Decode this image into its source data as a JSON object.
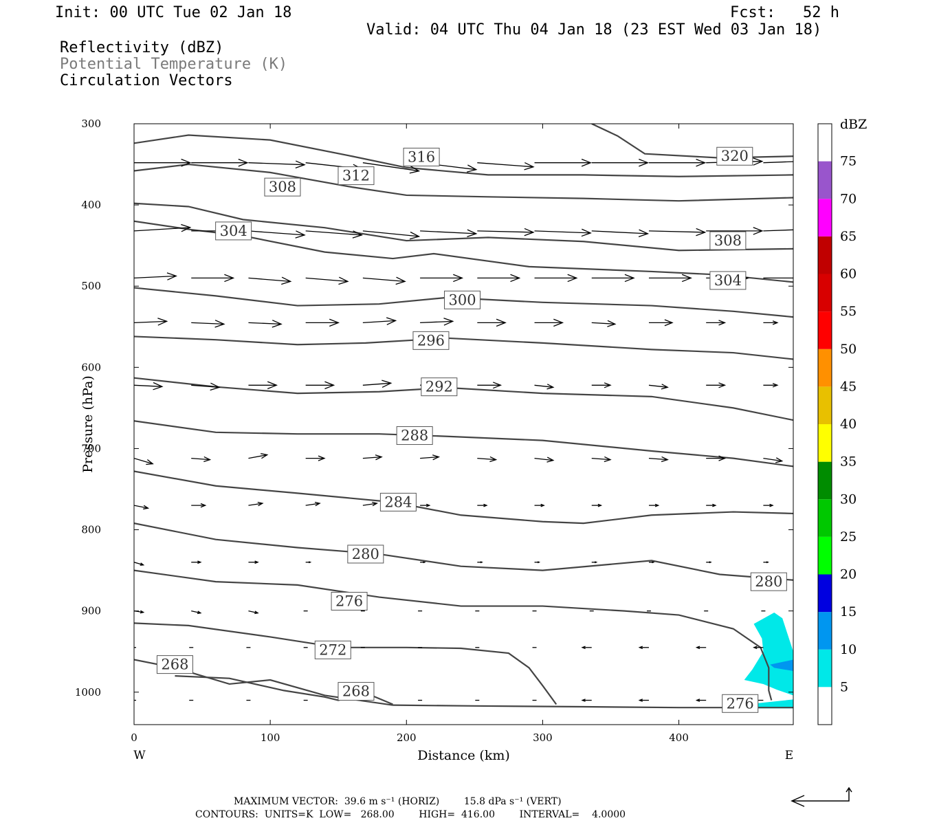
{
  "header": {
    "init": "Init: 00 UTC Tue 02 Jan 18",
    "fcst": "Fcst:   52 h",
    "valid": "Valid: 04 UTC Thu 04 Jan 18 (23 EST Wed 03 Jan 18)",
    "fields": [
      "Reflectivity (dBZ)",
      "Potential Temperature (K)",
      "Circulation Vectors"
    ]
  },
  "footer": {
    "max_vector": "MAXIMUM VECTOR:  39.6 m s⁻¹ (HORIZ)        15.8 dPa s⁻¹ (VERT)",
    "contours": "CONTOURS:  UNITS=K  LOW=   268.00        HIGH=  416.00        INTERVAL=    4.0000"
  },
  "chart_data": {
    "type": "cross-section",
    "xlabel": "Distance (km)",
    "ylabel": "Pressure (hPa)",
    "xlim": [
      0,
      484
    ],
    "ylim": [
      300,
      1040
    ],
    "x_ticks": [
      0,
      100,
      200,
      300,
      400
    ],
    "y_ticks": [
      300,
      400,
      500,
      600,
      700,
      800,
      900,
      1000
    ],
    "x_end_labels": {
      "left": "W",
      "right": "E"
    },
    "colorbar": {
      "label": "dBZ",
      "ticks": [
        5,
        10,
        15,
        20,
        25,
        30,
        35,
        40,
        45,
        50,
        55,
        60,
        65,
        70,
        75
      ],
      "colors": [
        "#00e8e8",
        "#0096f0",
        "#0000e0",
        "#00ff00",
        "#00c800",
        "#008c00",
        "#ffff00",
        "#e8c000",
        "#ff9000",
        "#ff0000",
        "#d80000",
        "#c00000",
        "#ff00ff",
        "#9955cc"
      ]
    },
    "theta_contours": [
      {
        "label": "320",
        "points": [
          [
            336,
            300
          ],
          [
            355,
            315
          ],
          [
            375,
            337
          ],
          [
            430,
            342
          ],
          [
            484,
            340
          ]
        ],
        "label_at": [
          441,
          340
        ]
      },
      {
        "label": "316",
        "points": [
          [
            0,
            324
          ],
          [
            40,
            314
          ],
          [
            100,
            320
          ],
          [
            160,
            340
          ],
          [
            200,
            354
          ],
          [
            260,
            363
          ],
          [
            330,
            363
          ],
          [
            400,
            365
          ],
          [
            484,
            363
          ]
        ],
        "label_at": [
          211,
          341
        ]
      },
      {
        "label": "312",
        "points": [
          [
            0,
            358
          ],
          [
            40,
            350
          ],
          [
            100,
            360
          ],
          [
            160,
            378
          ],
          [
            200,
            388
          ],
          [
            260,
            390
          ],
          [
            330,
            392
          ],
          [
            400,
            395
          ],
          [
            484,
            391
          ]
        ],
        "label_at": [
          163,
          364
        ]
      },
      {
        "label": "308",
        "points": [
          [
            0,
            398
          ],
          [
            40,
            402
          ],
          [
            80,
            418
          ],
          [
            140,
            428
          ],
          [
            200,
            444
          ],
          [
            260,
            440
          ],
          [
            330,
            445
          ],
          [
            400,
            456
          ],
          [
            484,
            454
          ]
        ],
        "label_at": [
          109,
          378
        ]
      },
      {
        "label": "308",
        "points": [],
        "label_at": [
          436,
          444
        ]
      },
      {
        "label": "304",
        "points": [
          [
            0,
            420
          ],
          [
            40,
            430
          ],
          [
            80,
            438
          ],
          [
            140,
            458
          ],
          [
            190,
            466
          ],
          [
            220,
            460
          ],
          [
            290,
            476
          ],
          [
            380,
            482
          ],
          [
            430,
            486
          ],
          [
            484,
            495
          ]
        ],
        "label_at": [
          73,
          432
        ]
      },
      {
        "label": "304",
        "points": [],
        "label_at": [
          436,
          493
        ]
      },
      {
        "label": "300",
        "points": [
          [
            0,
            502
          ],
          [
            60,
            512
          ],
          [
            120,
            524
          ],
          [
            180,
            522
          ],
          [
            230,
            514
          ],
          [
            300,
            520
          ],
          [
            380,
            524
          ],
          [
            440,
            531
          ],
          [
            484,
            538
          ]
        ],
        "label_at": [
          241,
          517
        ]
      },
      {
        "label": "296",
        "points": [
          [
            0,
            562
          ],
          [
            60,
            566
          ],
          [
            120,
            572
          ],
          [
            170,
            570
          ],
          [
            230,
            564
          ],
          [
            300,
            570
          ],
          [
            380,
            578
          ],
          [
            440,
            582
          ],
          [
            484,
            590
          ]
        ],
        "label_at": [
          218,
          567
        ]
      },
      {
        "label": "292",
        "points": [
          [
            0,
            613
          ],
          [
            60,
            624
          ],
          [
            120,
            632
          ],
          [
            180,
            630
          ],
          [
            230,
            625
          ],
          [
            300,
            632
          ],
          [
            380,
            636
          ],
          [
            440,
            650
          ],
          [
            484,
            665
          ]
        ],
        "label_at": [
          224,
          624
        ]
      },
      {
        "label": "288",
        "points": [
          [
            0,
            666
          ],
          [
            60,
            680
          ],
          [
            120,
            682
          ],
          [
            180,
            682
          ],
          [
            230,
            685
          ],
          [
            300,
            690
          ],
          [
            380,
            703
          ],
          [
            440,
            712
          ],
          [
            484,
            722
          ]
        ],
        "label_at": [
          206,
          684
        ]
      },
      {
        "label": "284",
        "points": [
          [
            0,
            728
          ],
          [
            60,
            746
          ],
          [
            120,
            755
          ],
          [
            190,
            766
          ],
          [
            240,
            782
          ],
          [
            300,
            790
          ],
          [
            330,
            792
          ],
          [
            380,
            782
          ],
          [
            440,
            778
          ],
          [
            484,
            780
          ]
        ],
        "label_at": [
          194,
          766
        ]
      },
      {
        "label": "280",
        "points": [
          [
            0,
            792
          ],
          [
            60,
            812
          ],
          [
            120,
            822
          ],
          [
            180,
            830
          ],
          [
            240,
            845
          ],
          [
            300,
            850
          ],
          [
            380,
            838
          ],
          [
            430,
            855
          ],
          [
            484,
            862
          ]
        ],
        "label_at": [
          170,
          830
        ]
      },
      {
        "label": "280",
        "points": [],
        "label_at": [
          466,
          864
        ]
      },
      {
        "label": "276",
        "points": [
          [
            0,
            850
          ],
          [
            60,
            864
          ],
          [
            120,
            868
          ],
          [
            180,
            883
          ],
          [
            240,
            894
          ],
          [
            300,
            894
          ],
          [
            360,
            900
          ],
          [
            400,
            905
          ],
          [
            440,
            922
          ],
          [
            460,
            945
          ],
          [
            466,
            970
          ],
          [
            466,
            998
          ],
          [
            468,
            1010
          ]
        ],
        "label_at": [
          158,
          888
        ]
      },
      {
        "label": "276",
        "points": [],
        "label_at": [
          445,
          1014
        ]
      },
      {
        "label": "272",
        "points": [
          [
            0,
            915
          ],
          [
            40,
            918
          ],
          [
            100,
            932
          ],
          [
            150,
            945
          ],
          [
            200,
            945
          ],
          [
            240,
            946
          ],
          [
            275,
            952
          ],
          [
            290,
            970
          ],
          [
            300,
            992
          ],
          [
            310,
            1015
          ]
        ],
        "label_at": [
          146,
          948
        ]
      },
      {
        "label": "268",
        "points": [
          [
            0,
            960
          ],
          [
            30,
            970
          ],
          [
            70,
            990
          ],
          [
            100,
            985
          ],
          [
            140,
            1004
          ],
          [
            190,
            1016
          ]
        ],
        "label_at": [
          30,
          966
        ]
      },
      {
        "label": "268",
        "points": [
          [
            30,
            980
          ],
          [
            70,
            983
          ],
          [
            110,
            998
          ],
          [
            140,
            1006
          ],
          [
            150,
            1010
          ],
          [
            170,
            1001
          ],
          [
            190,
            1015
          ]
        ],
        "label_at": [
          163,
          999
        ]
      },
      {
        "label": "",
        "points": [
          [
            190,
            1016
          ],
          [
            250,
            1017
          ],
          [
            330,
            1018
          ],
          [
            400,
            1019
          ],
          [
            484,
            1019
          ]
        ],
        "label_at": null
      }
    ],
    "reflectivity": [
      {
        "dbz": 5,
        "polygon": [
          [
            455,
            916
          ],
          [
            470,
            902
          ],
          [
            476,
            909
          ],
          [
            484,
            950
          ],
          [
            484,
            1004
          ],
          [
            472,
            997
          ],
          [
            462,
            990
          ],
          [
            448,
            985
          ],
          [
            454,
            972
          ],
          [
            462,
            950
          ],
          [
            461,
            934
          ]
        ]
      },
      {
        "dbz": 10,
        "polygon": [
          [
            467,
            966
          ],
          [
            484,
            960
          ],
          [
            484,
            974
          ],
          [
            470,
            970
          ]
        ]
      },
      {
        "dbz": 5,
        "polygon": [
          [
            450,
            1015
          ],
          [
            484,
            1009
          ],
          [
            484,
            1020
          ],
          [
            450,
            1020
          ]
        ]
      }
    ],
    "vectors": {
      "rows": [
        {
          "p": 348,
          "u": [
            12,
            12,
            12,
            12,
            12,
            12,
            12,
            12,
            12,
            12,
            12,
            12
          ],
          "w": [
            0,
            0,
            3,
            9,
            12,
            10,
            6,
            0,
            0,
            0,
            -2,
            -3
          ]
        },
        {
          "p": 432,
          "u": [
            12,
            12,
            12,
            12,
            12,
            12,
            12,
            12,
            12,
            12,
            12,
            12
          ],
          "w": [
            -5,
            0,
            6,
            6,
            8,
            4,
            2,
            3,
            4,
            2,
            0,
            -3
          ]
        },
        {
          "p": 490,
          "u": [
            9,
            9,
            9,
            9,
            9,
            9,
            9,
            9,
            9,
            9,
            9,
            9
          ],
          "w": [
            -3,
            0,
            5,
            5,
            5,
            0,
            0,
            0,
            0,
            0,
            0,
            0
          ]
        },
        {
          "p": 545,
          "u": [
            7,
            7,
            7,
            7,
            7,
            7,
            6,
            6,
            5,
            5,
            4,
            3
          ],
          "w": [
            -2,
            2,
            2,
            0,
            -3,
            -2,
            0,
            0,
            2,
            0,
            0,
            0
          ]
        },
        {
          "p": 622,
          "u": [
            6,
            6,
            6,
            6,
            6,
            5,
            5,
            4,
            4,
            4,
            4,
            3
          ],
          "w": [
            2,
            3,
            0,
            0,
            -3,
            -3,
            0,
            3,
            0,
            3,
            0,
            0
          ]
        },
        {
          "p": 712,
          "u": [
            4,
            4,
            4,
            4,
            4,
            4,
            4,
            4,
            4,
            4,
            4,
            4
          ],
          "w": [
            8,
            2,
            -5,
            0,
            -2,
            -2,
            2,
            3,
            2,
            2,
            0,
            4
          ]
        },
        {
          "p": 770,
          "u": [
            3,
            3,
            3,
            3,
            3,
            2,
            2,
            2,
            2,
            2,
            2,
            2
          ],
          "w": [
            4,
            0,
            -3,
            -3,
            -3,
            0,
            0,
            0,
            0,
            0,
            0,
            0
          ]
        },
        {
          "p": 840,
          "u": [
            2,
            2,
            2,
            1,
            1,
            1,
            1,
            1,
            1,
            1,
            1,
            1
          ],
          "w": [
            4,
            0,
            0,
            0,
            0,
            0,
            0,
            0,
            0,
            0,
            0,
            0
          ]
        },
        {
          "p": 900,
          "u": [
            2,
            2,
            2,
            0,
            0,
            0,
            0,
            0,
            0,
            0,
            0,
            0
          ],
          "w": [
            2,
            3,
            3,
            -2,
            0,
            0,
            0,
            0,
            0,
            0,
            0,
            0
          ]
        },
        {
          "p": 945,
          "u": [
            0,
            0,
            0,
            0,
            0,
            0,
            0,
            0,
            -2,
            -2,
            -2,
            -2
          ],
          "w": [
            0,
            0,
            0,
            0,
            0,
            0,
            0,
            0,
            0,
            0,
            0,
            0
          ]
        },
        {
          "p": 1010,
          "u": [
            0,
            0,
            0,
            0,
            0,
            0,
            0,
            0,
            -2,
            -2,
            -2,
            -2
          ],
          "w": [
            0,
            0,
            0,
            0,
            0,
            0,
            0,
            0,
            0,
            0,
            0,
            0
          ]
        }
      ],
      "x": [
        0,
        42,
        84,
        126,
        168,
        210,
        252,
        294,
        336,
        378,
        420,
        462
      ]
    }
  }
}
